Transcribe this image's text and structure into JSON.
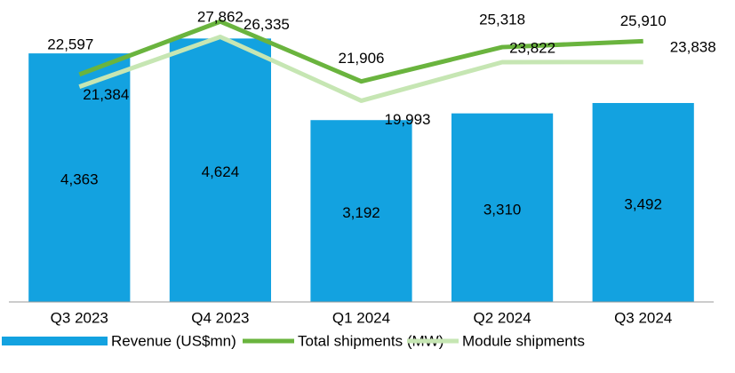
{
  "chart_data": {
    "type": "bar_line",
    "categories": [
      "Q3 2023",
      "Q4 2023",
      "Q1 2024",
      "Q2 2024",
      "Q3 2024"
    ],
    "ylim": [
      0,
      5300
    ],
    "y2lim": [
      0,
      30000
    ],
    "series": [
      {
        "name": "Revenue (US$mn)",
        "type": "bar",
        "color": "#13a2e0",
        "values": [
          4363,
          4624,
          3192,
          3310,
          3492
        ],
        "value_labels": [
          "4,363",
          "4,624",
          "3,192",
          "3,310",
          "3,492"
        ]
      },
      {
        "name": "Total shipments (MW)",
        "type": "line",
        "axis": "y2",
        "color": "#6ab43e",
        "values": [
          22597,
          27862,
          21906,
          25318,
          25910
        ],
        "value_labels": [
          "22,597",
          "27,862",
          "21,906",
          "25,318",
          "25,910"
        ]
      },
      {
        "name": "Module shipments",
        "type": "line",
        "axis": "y2",
        "color": "#c6e6b3",
        "values": [
          21384,
          26335,
          19993,
          23822,
          23838
        ],
        "value_labels": [
          "21,384",
          "26,335",
          "19,993",
          "23,822",
          "23,838"
        ]
      }
    ]
  }
}
